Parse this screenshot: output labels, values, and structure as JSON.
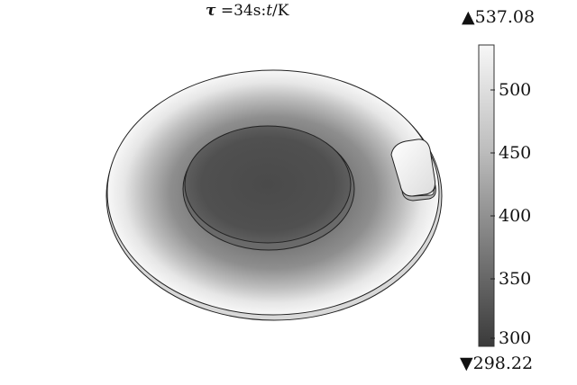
{
  "title": {
    "tau": "τ",
    "rest": " =34s:",
    "var": "t",
    "unit": "/K"
  },
  "colorbar": {
    "max_label": "▲537.08",
    "min_label": "▼298.22",
    "max_value": 537.08,
    "min_value": 298.22,
    "ticks": [
      {
        "label": "500",
        "value": 500
      },
      {
        "label": "450",
        "value": 450
      },
      {
        "label": "400",
        "value": 400
      },
      {
        "label": "350",
        "value": 350
      },
      {
        "label": "300",
        "value": 300
      }
    ],
    "colormap": "grayscale"
  },
  "colors": {
    "hot": "#f4f4f4",
    "mid": "#8a8a8a",
    "cold": "#3d3d3d",
    "outline": "#222222"
  }
}
